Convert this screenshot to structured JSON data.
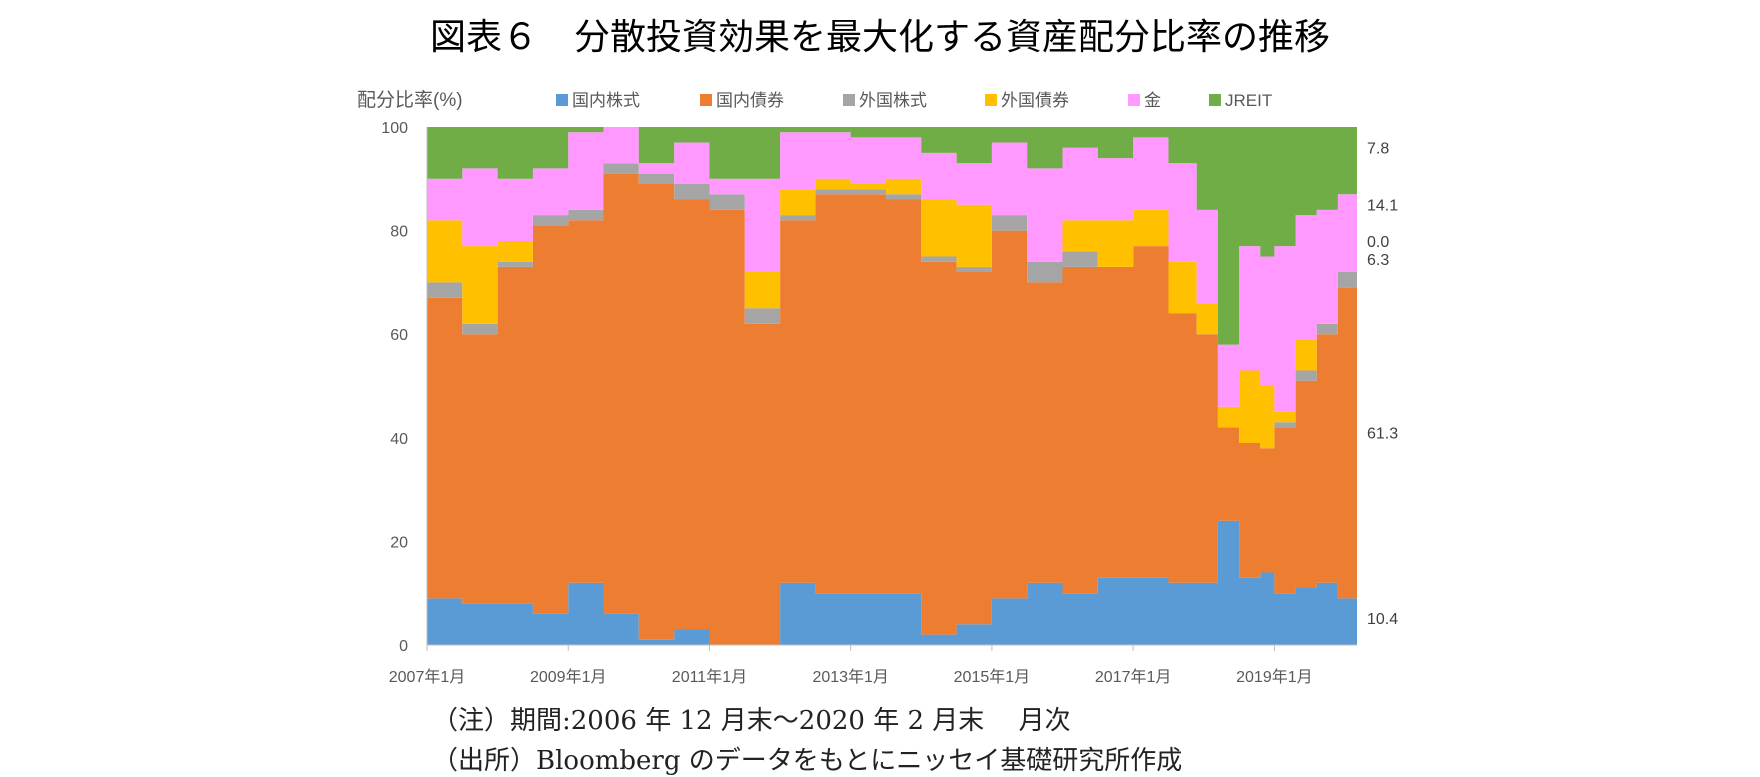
{
  "title": "図表６　分散投資効果を最大化する資産配分比率の推移",
  "notes": [
    "（注）期間:2006 年 12 月末～2020 年 2 月末　 月次",
    "（出所）Bloomberg のデータをもとにニッセイ基礎研究所作成"
  ],
  "chart_data": {
    "type": "area",
    "ylabel": "配分比率(%)",
    "ylim": [
      0,
      100
    ],
    "yticks": [
      0,
      20,
      40,
      60,
      80,
      100
    ],
    "xlim": [
      2007.0,
      2020.17
    ],
    "xticks": [
      {
        "value": 2007,
        "label": "2007年1月"
      },
      {
        "value": 2009,
        "label": "2009年1月"
      },
      {
        "value": 2011,
        "label": "2011年1月"
      },
      {
        "value": 2013,
        "label": "2013年1月"
      },
      {
        "value": 2015,
        "label": "2015年1月"
      },
      {
        "value": 2017,
        "label": "2017年1月"
      },
      {
        "value": 2019,
        "label": "2019年1月"
      }
    ],
    "legend_position": "top",
    "x": [
      2007.0,
      2007.5,
      2008.0,
      2008.5,
      2009.0,
      2009.5,
      2010.0,
      2010.5,
      2011.0,
      2011.5,
      2012.0,
      2012.5,
      2013.0,
      2013.5,
      2014.0,
      2014.5,
      2015.0,
      2015.5,
      2016.0,
      2016.5,
      2017.0,
      2017.5,
      2017.9,
      2018.2,
      2018.5,
      2018.8,
      2019.0,
      2019.3,
      2019.6,
      2019.9,
      2020.17
    ],
    "series": [
      {
        "name": "国内株式",
        "color": "#5B9BD5",
        "values": [
          9,
          8,
          8,
          6,
          12,
          6,
          1,
          3,
          0,
          0,
          12,
          10,
          10,
          10,
          2,
          4,
          9,
          12,
          10,
          13,
          13,
          12,
          12,
          24,
          13,
          14,
          10,
          11,
          12,
          9,
          10.4
        ]
      },
      {
        "name": "国内債券",
        "color": "#ED7D31",
        "values": [
          58,
          52,
          65,
          75,
          70,
          85,
          88,
          83,
          84,
          62,
          70,
          77,
          77,
          76,
          72,
          68,
          71,
          58,
          63,
          60,
          64,
          52,
          48,
          18,
          26,
          24,
          32,
          40,
          48,
          60,
          61.3
        ]
      },
      {
        "name": "外国株式",
        "color": "#A5A5A5",
        "values": [
          3,
          2,
          1,
          2,
          2,
          2,
          2,
          3,
          3,
          3,
          1,
          1,
          1,
          1,
          1,
          1,
          3,
          4,
          3,
          0,
          0,
          0,
          0,
          0,
          0,
          0,
          1,
          2,
          2,
          3,
          6.3
        ]
      },
      {
        "name": "外国債券",
        "color": "#FFC000",
        "values": [
          12,
          15,
          4,
          0,
          0,
          0,
          0,
          0,
          0,
          7,
          5,
          2,
          1,
          3,
          11,
          12,
          0,
          0,
          6,
          9,
          7,
          10,
          6,
          4,
          14,
          12,
          2,
          6,
          0,
          0,
          0.0
        ]
      },
      {
        "name": "金",
        "color": "#FF99FF",
        "values": [
          8,
          15,
          12,
          9,
          15,
          7,
          2,
          8,
          3,
          18,
          11,
          9,
          9,
          8,
          9,
          8,
          14,
          18,
          14,
          12,
          14,
          19,
          18,
          12,
          24,
          25,
          32,
          24,
          22,
          15,
          14.1
        ]
      },
      {
        "name": "JREIT",
        "color": "#70AD47",
        "values": [
          10,
          8,
          10,
          8,
          1,
          0,
          7,
          3,
          10,
          10,
          1,
          1,
          2,
          2,
          5,
          7,
          3,
          8,
          4,
          6,
          2,
          7,
          16,
          42,
          23,
          25,
          23,
          17,
          16,
          13,
          7.8
        ]
      }
    ],
    "end_labels": [
      "10.4",
      "61.3",
      "6.3",
      "0.0",
      "14.1",
      "7.8"
    ]
  }
}
